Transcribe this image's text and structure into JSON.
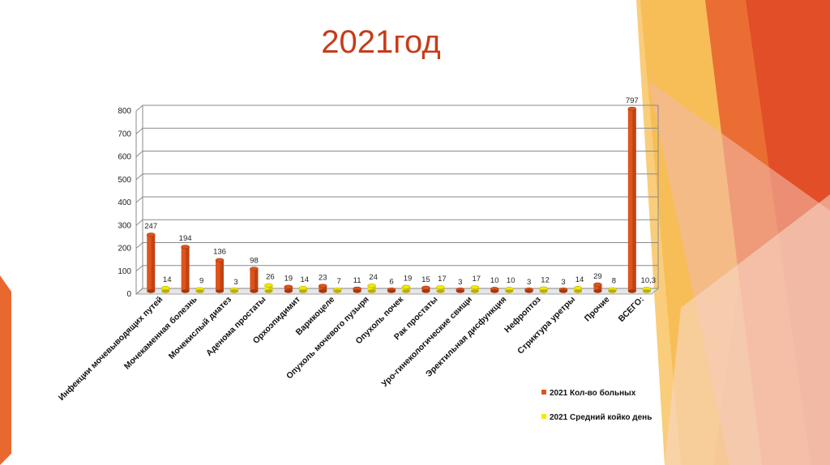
{
  "slide": {
    "title": "2021год"
  },
  "colors": {
    "series1": "#e0541c",
    "series1_dark": "#a5360d",
    "series2": "#f2ea00",
    "series2_dark": "#b8ad00",
    "title": "#c63c1a",
    "grid": "#8a8a8a"
  },
  "chart_data": {
    "type": "bar",
    "categories": [
      "Инфекции мочевыводящих путей",
      "Мочекаменная болезнь",
      "Мочекислый диатез",
      "Аденома простаты",
      "Орхоэпидимит",
      "Варикоцеле",
      "Опухоль мочевого пузыря",
      "Опухоль почек",
      "Рак простаты",
      "Уро-гинекологические свищи",
      "Эректильная дисфункция",
      "Нефроптоз",
      "Стриктура уретры",
      "Прочие",
      "ВСЕГО:"
    ],
    "series": [
      {
        "name": "2021 Кол-во больных",
        "values": [
          247,
          194,
          136,
          98,
          19,
          23,
          11,
          6,
          15,
          3,
          10,
          3,
          3,
          29,
          797
        ],
        "labels": [
          "247",
          "194",
          "136",
          "98",
          "19",
          "23",
          "11",
          "6",
          "15",
          "3",
          "10",
          "3",
          "3",
          "29",
          "797"
        ]
      },
      {
        "name": "2021 Средний койко день",
        "values": [
          14,
          9,
          3,
          26,
          14,
          7,
          24,
          19,
          17,
          17,
          10,
          12,
          14,
          8,
          10.3
        ],
        "labels": [
          "14",
          "9",
          "3",
          "26",
          "14",
          "7",
          "24",
          "19",
          "17",
          "17",
          "10",
          "12",
          "14",
          "8",
          "10,3"
        ]
      }
    ],
    "ylim": [
      0,
      800
    ],
    "yticks": [
      0,
      100,
      200,
      300,
      400,
      500,
      600,
      700,
      800
    ],
    "grid": true,
    "legend_position": "bottom-right"
  }
}
